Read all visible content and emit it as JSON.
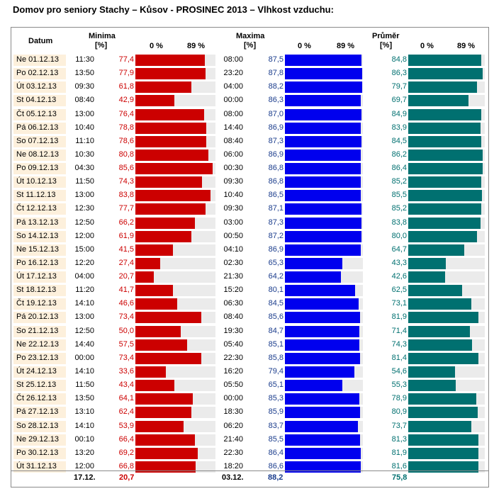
{
  "title": "Domov pro seniory Stachy – Kůsov - PROSINEC 2013 – Vlhkost vzduchu:",
  "headers": {
    "datum": "Datum",
    "minima": "Minima",
    "maxima": "Maxima",
    "prumer": "Průměr",
    "unit": "[%]",
    "scale_min": "0 %",
    "scale_max": "89 %"
  },
  "colors": {
    "min": "#cc0000",
    "max": "#0000ee",
    "avg": "#007070",
    "min_text": "#cc0000",
    "max_text": "#1a3c8c",
    "avg_text": "#007070"
  },
  "chart_data": {
    "type": "bar",
    "scale_max": 89,
    "dates": [
      "Ne 01.12.13",
      "Po 02.12.13",
      "Út 03.12.13",
      "St 04.12.13",
      "Čt 05.12.13",
      "Pá 06.12.13",
      "So 07.12.13",
      "Ne 08.12.13",
      "Po 09.12.13",
      "Út 10.12.13",
      "St 11.12.13",
      "Čt 12.12.13",
      "Pá 13.12.13",
      "So 14.12.13",
      "Ne 15.12.13",
      "Po 16.12.13",
      "Út 17.12.13",
      "St 18.12.13",
      "Čt 19.12.13",
      "Pá 20.12.13",
      "So 21.12.13",
      "Ne 22.12.13",
      "Po 23.12.13",
      "Út 24.12.13",
      "St 25.12.13",
      "Čt 26.12.13",
      "Pá 27.12.13",
      "So 28.12.13",
      "Ne 29.12.13",
      "Po 30.12.13",
      "Út 31.12.13"
    ],
    "min_times": [
      "11:30",
      "13:50",
      "09:30",
      "08:40",
      "13:00",
      "10:40",
      "11:10",
      "10:30",
      "04:30",
      "11:50",
      "13:00",
      "12:30",
      "12:50",
      "12:00",
      "15:00",
      "12:20",
      "04:00",
      "11:20",
      "14:10",
      "13:00",
      "12:50",
      "14:40",
      "00:00",
      "14:10",
      "11:50",
      "13:50",
      "13:10",
      "14:10",
      "00:10",
      "13:20",
      "12:00"
    ],
    "min_values": [
      "77,4",
      "77,9",
      "61,8",
      "42,9",
      "76,4",
      "78,8",
      "78,6",
      "80,8",
      "85,6",
      "74,3",
      "83,8",
      "77,7",
      "66,2",
      "61,9",
      "41,5",
      "27,4",
      "20,7",
      "41,7",
      "46,6",
      "73,4",
      "50,0",
      "57,5",
      "73,4",
      "33,6",
      "43,4",
      "64,1",
      "62,4",
      "53,9",
      "66,4",
      "69,2",
      "66,8"
    ],
    "max_times": [
      "08:00",
      "23:20",
      "04:00",
      "00:00",
      "08:00",
      "14:40",
      "08:40",
      "06:00",
      "00:30",
      "09:30",
      "10:40",
      "09:30",
      "03:00",
      "00:50",
      "04:10",
      "02:30",
      "21:30",
      "15:20",
      "06:30",
      "08:40",
      "19:30",
      "05:40",
      "22:30",
      "16:20",
      "05:50",
      "00:00",
      "18:30",
      "06:20",
      "21:40",
      "22:30",
      "18:20"
    ],
    "max_values": [
      "87,5",
      "87,8",
      "88,2",
      "86,3",
      "87,0",
      "86,9",
      "87,3",
      "86,9",
      "86,8",
      "86,8",
      "86,5",
      "87,1",
      "87,3",
      "87,2",
      "86,9",
      "65,3",
      "64,2",
      "80,1",
      "84,5",
      "85,6",
      "84,7",
      "85,1",
      "85,8",
      "79,4",
      "65,1",
      "85,3",
      "85,9",
      "83,7",
      "85,5",
      "86,4",
      "86,6"
    ],
    "avg_values": [
      "84,8",
      "86,3",
      "79,7",
      "69,7",
      "84,9",
      "83,9",
      "84,5",
      "86,2",
      "86,4",
      "85,2",
      "85,5",
      "85,2",
      "83,8",
      "80,0",
      "64,7",
      "43,3",
      "42,6",
      "62,5",
      "73,1",
      "81,9",
      "71,4",
      "74,3",
      "81,4",
      "54,6",
      "55,3",
      "78,9",
      "80,9",
      "73,7",
      "81,3",
      "81,9",
      "81,6"
    ]
  },
  "footer": {
    "min_date": "17.12.",
    "min_value": "20,7",
    "max_date": "03.12.",
    "max_value": "88,2",
    "avg_value": "75,8"
  }
}
